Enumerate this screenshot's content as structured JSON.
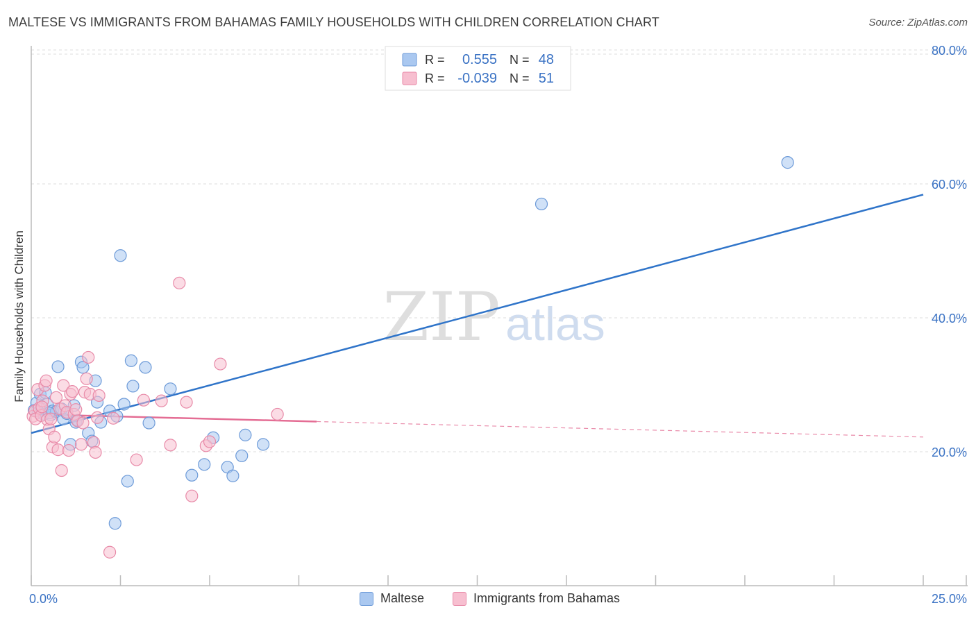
{
  "title": "MALTESE VS IMMIGRANTS FROM BAHAMAS FAMILY HOUSEHOLDS WITH CHILDREN CORRELATION CHART",
  "source": "Source: ZipAtlas.com",
  "watermark": {
    "zip": "ZIP",
    "atlas": "atlas"
  },
  "colors": {
    "blue_fill": "#aac8f0",
    "blue_stroke": "#6c9ad8",
    "blue_line": "#2f74c9",
    "pink_fill": "#f7bfd0",
    "pink_stroke": "#e88aa8",
    "pink_line": "#e46d94",
    "axis_text": "#3a72c4",
    "grid": "#dddddd"
  },
  "legend_top": {
    "rows": [
      {
        "r_label": "R =",
        "r_value": "0.555",
        "n_label": "N =",
        "n_value": "48"
      },
      {
        "r_label": "R =",
        "r_value": "-0.039",
        "n_label": "N =",
        "n_value": "51"
      }
    ]
  },
  "legend_bottom": [
    {
      "label": "Maltese"
    },
    {
      "label": "Immigrants from Bahamas"
    }
  ],
  "chart_data": {
    "type": "scatter",
    "title": "MALTESE VS IMMIGRANTS FROM BAHAMAS FAMILY HOUSEHOLDS WITH CHILDREN CORRELATION CHART",
    "xlabel": "",
    "ylabel": "Family Households with Children",
    "xlim": [
      0,
      25
    ],
    "ylim": [
      0,
      80
    ],
    "x_tick_labels": [
      "0.0%",
      "25.0%"
    ],
    "y_ticks": [
      20,
      40,
      60,
      80
    ],
    "y_tick_labels": [
      "20.0%",
      "40.0%",
      "60.0%",
      "80.0%"
    ],
    "series": [
      {
        "name": "Maltese",
        "r": 0.555,
        "n": 48,
        "trend": {
          "x0": 0,
          "y0": 22.8,
          "x1": 25,
          "y1": 58.4,
          "dashed_from": null
        },
        "points": [
          [
            0.08,
            26.2
          ],
          [
            0.15,
            27.3
          ],
          [
            0.2,
            25.9
          ],
          [
            0.25,
            28.6
          ],
          [
            0.3,
            26.4
          ],
          [
            0.35,
            25.6
          ],
          [
            0.4,
            28.8
          ],
          [
            0.45,
            27.1
          ],
          [
            0.55,
            25.5
          ],
          [
            0.6,
            26.1
          ],
          [
            0.7,
            26.0
          ],
          [
            0.75,
            32.7
          ],
          [
            0.85,
            26.4
          ],
          [
            0.9,
            24.9
          ],
          [
            1.0,
            25.7
          ],
          [
            1.1,
            21.1
          ],
          [
            1.2,
            26.9
          ],
          [
            1.25,
            24.4
          ],
          [
            1.3,
            24.7
          ],
          [
            1.4,
            33.4
          ],
          [
            1.45,
            32.6
          ],
          [
            1.6,
            22.8
          ],
          [
            1.7,
            21.6
          ],
          [
            1.8,
            30.6
          ],
          [
            1.85,
            27.4
          ],
          [
            1.95,
            24.4
          ],
          [
            2.2,
            26.1
          ],
          [
            2.4,
            25.3
          ],
          [
            2.5,
            49.3
          ],
          [
            2.6,
            27.1
          ],
          [
            2.7,
            15.6
          ],
          [
            2.8,
            33.6
          ],
          [
            2.85,
            29.8
          ],
          [
            3.2,
            32.6
          ],
          [
            3.3,
            24.3
          ],
          [
            3.9,
            29.4
          ],
          [
            4.5,
            16.5
          ],
          [
            4.85,
            18.1
          ],
          [
            5.1,
            22.1
          ],
          [
            5.5,
            17.7
          ],
          [
            5.65,
            16.4
          ],
          [
            5.9,
            19.4
          ],
          [
            6.0,
            22.5
          ],
          [
            6.5,
            21.1
          ],
          [
            2.35,
            9.3
          ],
          [
            14.3,
            57.0
          ],
          [
            21.2,
            63.2
          ],
          [
            0.5,
            25.8
          ]
        ]
      },
      {
        "name": "Immigrants from Bahamas",
        "r": -0.039,
        "n": 51,
        "trend": {
          "x0": 0,
          "y0": 25.6,
          "x1": 25,
          "y1": 22.2,
          "dashed_from": 8.0
        },
        "points": [
          [
            0.05,
            25.3
          ],
          [
            0.1,
            26.1
          ],
          [
            0.12,
            24.9
          ],
          [
            0.18,
            29.3
          ],
          [
            0.22,
            26.5
          ],
          [
            0.28,
            25.4
          ],
          [
            0.32,
            27.6
          ],
          [
            0.38,
            29.9
          ],
          [
            0.42,
            30.6
          ],
          [
            0.45,
            24.8
          ],
          [
            0.5,
            23.4
          ],
          [
            0.55,
            24.9
          ],
          [
            0.6,
            20.7
          ],
          [
            0.65,
            22.2
          ],
          [
            0.7,
            28.1
          ],
          [
            0.75,
            20.3
          ],
          [
            0.8,
            26.4
          ],
          [
            0.85,
            17.2
          ],
          [
            0.9,
            29.9
          ],
          [
            0.95,
            26.9
          ],
          [
            1.0,
            25.9
          ],
          [
            1.05,
            20.2
          ],
          [
            1.1,
            28.6
          ],
          [
            1.15,
            29.0
          ],
          [
            1.2,
            25.6
          ],
          [
            1.25,
            26.3
          ],
          [
            1.3,
            24.6
          ],
          [
            1.4,
            21.1
          ],
          [
            1.45,
            24.3
          ],
          [
            1.5,
            28.9
          ],
          [
            1.55,
            30.9
          ],
          [
            1.6,
            34.1
          ],
          [
            1.65,
            28.6
          ],
          [
            1.75,
            21.4
          ],
          [
            1.8,
            19.9
          ],
          [
            1.85,
            25.1
          ],
          [
            1.9,
            28.4
          ],
          [
            2.2,
            5.0
          ],
          [
            2.3,
            25.0
          ],
          [
            2.95,
            18.8
          ],
          [
            3.15,
            27.7
          ],
          [
            3.65,
            27.6
          ],
          [
            3.9,
            21.0
          ],
          [
            4.15,
            45.2
          ],
          [
            4.35,
            27.4
          ],
          [
            4.5,
            13.4
          ],
          [
            4.9,
            20.9
          ],
          [
            5.0,
            21.5
          ],
          [
            5.3,
            33.1
          ],
          [
            6.9,
            25.6
          ],
          [
            0.3,
            26.7
          ]
        ]
      }
    ]
  }
}
